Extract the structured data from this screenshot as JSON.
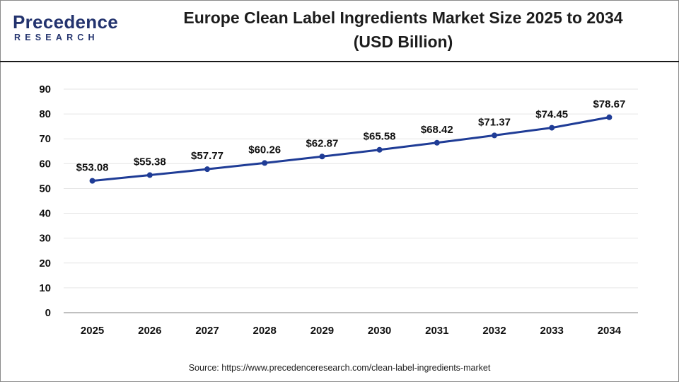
{
  "brand": {
    "name": "Precedence",
    "tagline": "RESEARCH"
  },
  "title_line1": "Europe Clean Label Ingredients Market Size 2025 to 2034",
  "title_line2": "(USD Billion)",
  "source": "Source: https://www.precedenceresearch.com/clean-label-ingredients-market",
  "colors": {
    "line": "#1f3c96",
    "brand": "#23336e",
    "grid": "#e6e6e6",
    "axis": "#9a9a9a"
  },
  "chart_data": {
    "type": "line",
    "title": "Europe Clean Label Ingredients Market Size 2025 to 2034",
    "subtitle": "(USD Billion)",
    "xlabel": "",
    "ylabel": "",
    "categories": [
      "2025",
      "2026",
      "2027",
      "2028",
      "2029",
      "2030",
      "2031",
      "2032",
      "2033",
      "2034"
    ],
    "series": [
      {
        "values": [
          53.08,
          55.38,
          57.77,
          60.26,
          62.87,
          65.58,
          68.42,
          71.37,
          74.45,
          78.67
        ],
        "labels": [
          "$53.08",
          "$55.38",
          "$57.77",
          "$60.26",
          "$62.87",
          "$65.58",
          "$68.42",
          "$71.37",
          "$74.45",
          "$78.67"
        ]
      }
    ],
    "ylim": [
      0,
      90
    ],
    "yticks": [
      "0",
      "10",
      "20",
      "30",
      "40",
      "50",
      "60",
      "70",
      "80",
      "90"
    ],
    "grid": true,
    "legend": "none"
  }
}
